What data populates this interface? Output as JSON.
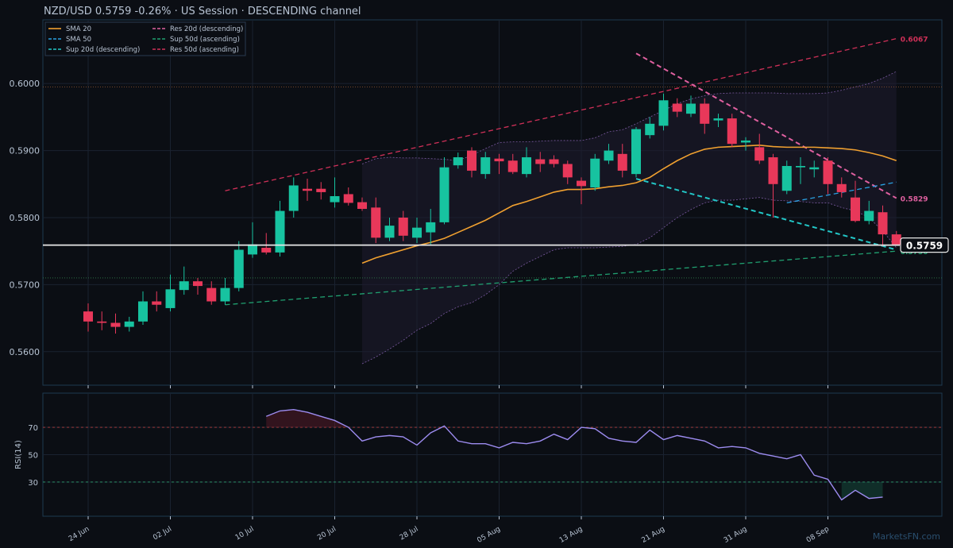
{
  "header": {
    "title": "NZD/USD   0.5759   -0.26%  ·  US Session  ·  DESCENDING channel"
  },
  "watermark": "MarketsFN.com",
  "colors": {
    "background": "#0b0e14",
    "panel_border": "#1e3a4f",
    "grid": "#1a2230",
    "text": "#b8c4d4",
    "up": "#17c3a0",
    "down": "#e8385a",
    "sma20": "#f0a030",
    "sma50": "#2a9fe0",
    "sup20": "#22c7c7",
    "res20": "#e060a0",
    "sup50": "#20a070",
    "res50": "#d03058",
    "rsi": "#9d8cf0",
    "price_line": "#e8e8e8"
  },
  "legend": [
    {
      "name": "SMA 20",
      "color": "#f0a030",
      "dash": false
    },
    {
      "name": "SMA 50",
      "color": "#2a9fe0",
      "dash": true
    },
    {
      "name": "Sup 20d (descending)",
      "color": "#22c7c7",
      "dash": true
    },
    {
      "name": "Res 20d (descending)",
      "color": "#e060a0",
      "dash": true
    },
    {
      "name": "Sup 50d (ascending)",
      "color": "#20a070",
      "dash": true
    },
    {
      "name": "Res 50d (ascending)",
      "color": "#d03058",
      "dash": true
    }
  ],
  "chart_data": [
    {
      "type": "candlestick",
      "title": "NZD/USD   0.5759   -0.26%  ·  US Session  ·  DESCENDING channel",
      "ylim": [
        0.555,
        0.6095
      ],
      "ytick_values": [
        0.56,
        0.57,
        0.58,
        0.59,
        0.6
      ],
      "ytick_labels": [
        "0.5600",
        "0.5700",
        "0.5800",
        "0.5900",
        "0.6000"
      ],
      "xtick_labels": [
        "24 Jun",
        "02 Jul",
        "10 Jul",
        "20 Jul",
        "28 Jul",
        "05 Aug",
        "13 Aug",
        "21 Aug",
        "31 Aug",
        "08 Sep"
      ],
      "xtick_index": [
        0,
        6,
        12,
        18,
        24,
        30,
        36,
        42,
        48,
        54
      ],
      "candles": [
        [
          0.566,
          0.5672,
          0.563,
          0.5645
        ],
        [
          0.5645,
          0.566,
          0.5632,
          0.5643
        ],
        [
          0.5643,
          0.5657,
          0.5627,
          0.5637
        ],
        [
          0.5637,
          0.5652,
          0.563,
          0.5645
        ],
        [
          0.5645,
          0.569,
          0.564,
          0.5675
        ],
        [
          0.5675,
          0.569,
          0.566,
          0.567
        ],
        [
          0.5665,
          0.5715,
          0.566,
          0.5693
        ],
        [
          0.5692,
          0.5727,
          0.5685,
          0.5705
        ],
        [
          0.5705,
          0.571,
          0.5685,
          0.5698
        ],
        [
          0.5695,
          0.5705,
          0.567,
          0.5675
        ],
        [
          0.5675,
          0.571,
          0.567,
          0.5695
        ],
        [
          0.5695,
          0.5765,
          0.569,
          0.5752
        ],
        [
          0.5745,
          0.5793,
          0.574,
          0.576
        ],
        [
          0.5755,
          0.5777,
          0.5745,
          0.5748
        ],
        [
          0.5748,
          0.5825,
          0.5742,
          0.581
        ],
        [
          0.581,
          0.586,
          0.58,
          0.5848
        ],
        [
          0.5843,
          0.5858,
          0.5825,
          0.584
        ],
        [
          0.5843,
          0.5853,
          0.5827,
          0.5838
        ],
        [
          0.5823,
          0.586,
          0.5815,
          0.5832
        ],
        [
          0.5835,
          0.5845,
          0.5818,
          0.5822
        ],
        [
          0.5823,
          0.583,
          0.581,
          0.5813
        ],
        [
          0.5815,
          0.583,
          0.5762,
          0.577
        ],
        [
          0.577,
          0.58,
          0.5765,
          0.5788
        ],
        [
          0.58,
          0.581,
          0.5765,
          0.5773
        ],
        [
          0.577,
          0.58,
          0.5762,
          0.5785
        ],
        [
          0.5778,
          0.5813,
          0.576,
          0.5793
        ],
        [
          0.5793,
          0.589,
          0.579,
          0.5875
        ],
        [
          0.5878,
          0.5897,
          0.5873,
          0.589
        ],
        [
          0.59,
          0.5905,
          0.586,
          0.587
        ],
        [
          0.5865,
          0.5898,
          0.5858,
          0.589
        ],
        [
          0.5888,
          0.5895,
          0.5865,
          0.5884
        ],
        [
          0.5885,
          0.5895,
          0.5865,
          0.5868
        ],
        [
          0.5865,
          0.5905,
          0.586,
          0.589
        ],
        [
          0.5887,
          0.5898,
          0.5868,
          0.588
        ],
        [
          0.5887,
          0.5893,
          0.5875,
          0.588
        ],
        [
          0.588,
          0.5885,
          0.585,
          0.586
        ],
        [
          0.5855,
          0.586,
          0.582,
          0.5847
        ],
        [
          0.5845,
          0.5895,
          0.584,
          0.5888
        ],
        [
          0.5885,
          0.591,
          0.588,
          0.59
        ],
        [
          0.5895,
          0.591,
          0.586,
          0.587
        ],
        [
          0.5865,
          0.5935,
          0.586,
          0.5932
        ],
        [
          0.5923,
          0.595,
          0.5918,
          0.594
        ],
        [
          0.5937,
          0.5985,
          0.593,
          0.5975
        ],
        [
          0.597,
          0.5978,
          0.595,
          0.5958
        ],
        [
          0.5955,
          0.5982,
          0.595,
          0.597
        ],
        [
          0.597,
          0.5978,
          0.5925,
          0.594
        ],
        [
          0.5945,
          0.5955,
          0.5935,
          0.5948
        ],
        [
          0.5948,
          0.5955,
          0.5905,
          0.591
        ],
        [
          0.5912,
          0.592,
          0.59,
          0.5915
        ],
        [
          0.5905,
          0.5925,
          0.588,
          0.5885
        ],
        [
          0.589,
          0.5895,
          0.58,
          0.585
        ],
        [
          0.584,
          0.5885,
          0.5835,
          0.5877
        ],
        [
          0.5875,
          0.589,
          0.585,
          0.5877
        ],
        [
          0.5872,
          0.5885,
          0.586,
          0.5875
        ],
        [
          0.5885,
          0.589,
          0.5835,
          0.585
        ],
        [
          0.585,
          0.586,
          0.583,
          0.5838
        ],
        [
          0.583,
          0.5855,
          0.5793,
          0.5795
        ],
        [
          0.5795,
          0.5825,
          0.579,
          0.581
        ],
        [
          0.5808,
          0.5818,
          0.5757,
          0.5775
        ],
        [
          0.5775,
          0.578,
          0.5758,
          0.5759
        ]
      ],
      "sma20": [
        null,
        null,
        null,
        null,
        null,
        null,
        null,
        null,
        null,
        null,
        null,
        null,
        null,
        null,
        null,
        null,
        null,
        null,
        null,
        null,
        0.5732,
        0.574,
        0.5746,
        0.5752,
        0.5758,
        0.5763,
        0.5769,
        0.5778,
        0.5787,
        0.5796,
        0.5807,
        0.5818,
        0.5824,
        0.5831,
        0.5838,
        0.5842,
        0.5842,
        0.5843,
        0.5846,
        0.5848,
        0.5852,
        0.586,
        0.5873,
        0.5885,
        0.5895,
        0.5902,
        0.5905,
        0.5906,
        0.5907,
        0.5908,
        0.5906,
        0.5905,
        0.5905,
        0.5905,
        0.5904,
        0.5903,
        0.5901,
        0.5897,
        0.5892,
        0.5885
      ],
      "bb_upper": [
        null,
        null,
        null,
        null,
        null,
        null,
        null,
        null,
        null,
        null,
        null,
        null,
        null,
        null,
        null,
        null,
        null,
        null,
        null,
        null,
        0.588,
        0.5888,
        0.589,
        0.5889,
        0.5889,
        0.5888,
        0.5887,
        0.5885,
        0.5893,
        0.5903,
        0.5912,
        0.5913,
        0.5913,
        0.5914,
        0.5915,
        0.5915,
        0.5915,
        0.5919,
        0.5928,
        0.5931,
        0.594,
        0.595,
        0.596,
        0.597,
        0.5977,
        0.5982,
        0.5985,
        0.5986,
        0.5986,
        0.5986,
        0.5986,
        0.5985,
        0.5985,
        0.5985,
        0.5986,
        0.599,
        0.5995,
        0.6,
        0.6008,
        0.6018
      ],
      "bb_lower": [
        null,
        null,
        null,
        null,
        null,
        null,
        null,
        null,
        null,
        null,
        null,
        null,
        null,
        null,
        null,
        null,
        null,
        null,
        null,
        null,
        0.5582,
        0.5592,
        0.5604,
        0.5617,
        0.5632,
        0.5642,
        0.5657,
        0.5667,
        0.5673,
        0.5685,
        0.57,
        0.572,
        0.5732,
        0.5742,
        0.5752,
        0.5755,
        0.5755,
        0.5755,
        0.5756,
        0.5757,
        0.576,
        0.577,
        0.5785,
        0.58,
        0.5812,
        0.5822,
        0.5826,
        0.5826,
        0.5828,
        0.583,
        0.5826,
        0.5825,
        0.5824,
        0.5822,
        0.5822,
        0.5815,
        0.581,
        0.58,
        0.578,
        0.5755
      ],
      "trendlines": [
        {
          "name": "Res 50d (ascending)",
          "from": [
            10,
            0.584
          ],
          "to": [
            59,
            0.6067
          ],
          "label": "0.6067"
        },
        {
          "name": "Sup 50d (ascending)",
          "from": [
            10,
            0.567
          ],
          "to": [
            59,
            0.575
          ],
          "label": "0.5750"
        },
        {
          "name": "Res 20d (descending)",
          "from": [
            40,
            0.6045
          ],
          "to": [
            59,
            0.5829
          ],
          "label": "0.5829"
        },
        {
          "name": "Sup 20d (descending)",
          "from": [
            40,
            0.5858
          ],
          "to": [
            59,
            0.5752
          ],
          "label": ""
        },
        {
          "name": "SMA 50",
          "from": [
            51,
            0.5822
          ],
          "to": [
            59,
            0.5853
          ],
          "label": ""
        }
      ],
      "hlines": [
        0.5995,
        0.571
      ],
      "last_price": 0.5759,
      "last_price_label": "0.5759"
    },
    {
      "type": "line",
      "ylabel": "RSI(14)",
      "ylim": [
        5,
        95
      ],
      "ytick_values": [
        30,
        50,
        70
      ],
      "ytick_labels": [
        "30",
        "50",
        "70"
      ],
      "levels": [
        70,
        30
      ],
      "rsi": [
        null,
        null,
        null,
        null,
        null,
        null,
        null,
        null,
        null,
        null,
        null,
        null,
        null,
        78,
        82,
        83,
        81,
        78,
        75,
        70,
        60,
        63,
        64,
        63,
        57,
        66,
        71,
        60,
        58,
        58,
        55,
        59,
        58,
        60,
        65,
        61,
        70,
        69,
        62,
        60,
        59,
        68,
        61,
        64,
        62,
        60,
        55,
        56,
        55,
        51,
        49,
        47,
        50,
        35,
        32,
        17,
        24,
        18,
        19,
        null
      ]
    }
  ]
}
